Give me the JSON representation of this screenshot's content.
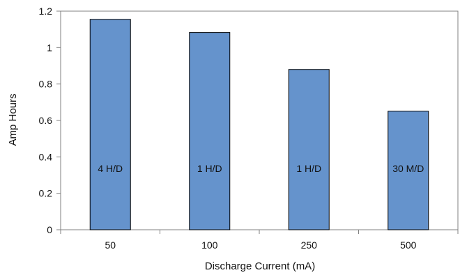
{
  "chart_data": {
    "type": "bar",
    "title": "",
    "xlabel": "Discharge Current (mA)",
    "ylabel": "Amp Hours",
    "categories": [
      "50",
      "100",
      "250",
      "500"
    ],
    "values": [
      1.155,
      1.083,
      0.88,
      0.651
    ],
    "bar_labels": [
      "4 H/D",
      "1 H/D",
      "1 H/D",
      "30 M/D"
    ],
    "ylim": [
      0,
      1.2
    ],
    "yticks": [
      "0",
      "0.2",
      "0.4",
      "0.6",
      "0.8",
      "1",
      "1.2"
    ],
    "grid": false,
    "legend": "none",
    "colors": {
      "bar_fill": "#6593cc",
      "bar_stroke": "#000000",
      "axis": "#808080"
    }
  }
}
